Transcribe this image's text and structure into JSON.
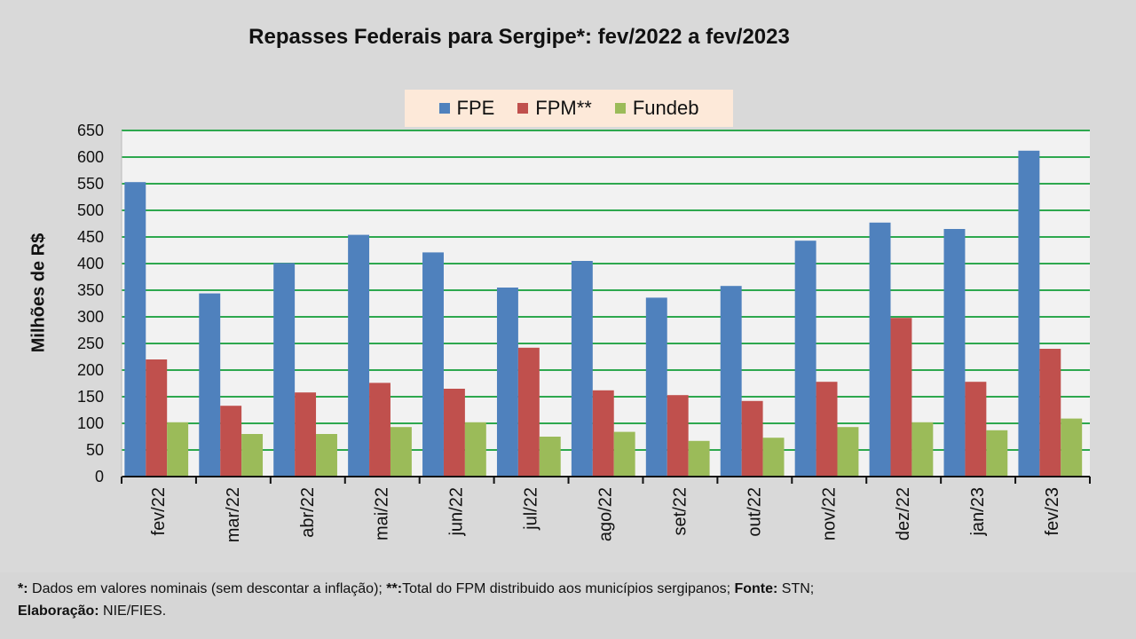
{
  "chart_data": {
    "type": "bar",
    "title": "Repasses Federais para Sergipe*: fev/2022 a fev/2023",
    "xlabel": "",
    "ylabel": "Milhões de R$",
    "ylim": [
      0,
      650
    ],
    "yticks": [
      0,
      50,
      100,
      150,
      200,
      250,
      300,
      350,
      400,
      450,
      500,
      550,
      600,
      650
    ],
    "grid": true,
    "legend_position": "top-center",
    "categories": [
      "fev/22",
      "mar/22",
      "abr/22",
      "mai/22",
      "jun/22",
      "jul/22",
      "ago/22",
      "set/22",
      "out/22",
      "nov/22",
      "dez/22",
      "jan/23",
      "fev/23"
    ],
    "series": [
      {
        "name": "FPE",
        "color": "#4f81bd",
        "values": [
          553,
          344,
          401,
          454,
          421,
          355,
          405,
          336,
          358,
          443,
          477,
          465,
          612
        ]
      },
      {
        "name": "FPM**",
        "color": "#c0504d",
        "values": [
          220,
          133,
          158,
          176,
          165,
          242,
          162,
          153,
          142,
          178,
          298,
          178,
          240
        ]
      },
      {
        "name": "Fundeb",
        "color": "#9bbb59",
        "values": [
          102,
          80,
          80,
          93,
          102,
          75,
          84,
          67,
          73,
          93,
          102,
          87,
          109
        ]
      }
    ]
  },
  "footnote": {
    "star_label": "*:",
    "star_text": " Dados em valores nominais (sem descontar a inflação); ",
    "dstar_label": "**:",
    "dstar_text": "Total  do FPM distribuido aos municípios sergipanos; ",
    "source_label": "Fonte:",
    "source_text": " STN;",
    "author_label": "Elaboração:",
    "author_text": " NIE/FIES."
  }
}
